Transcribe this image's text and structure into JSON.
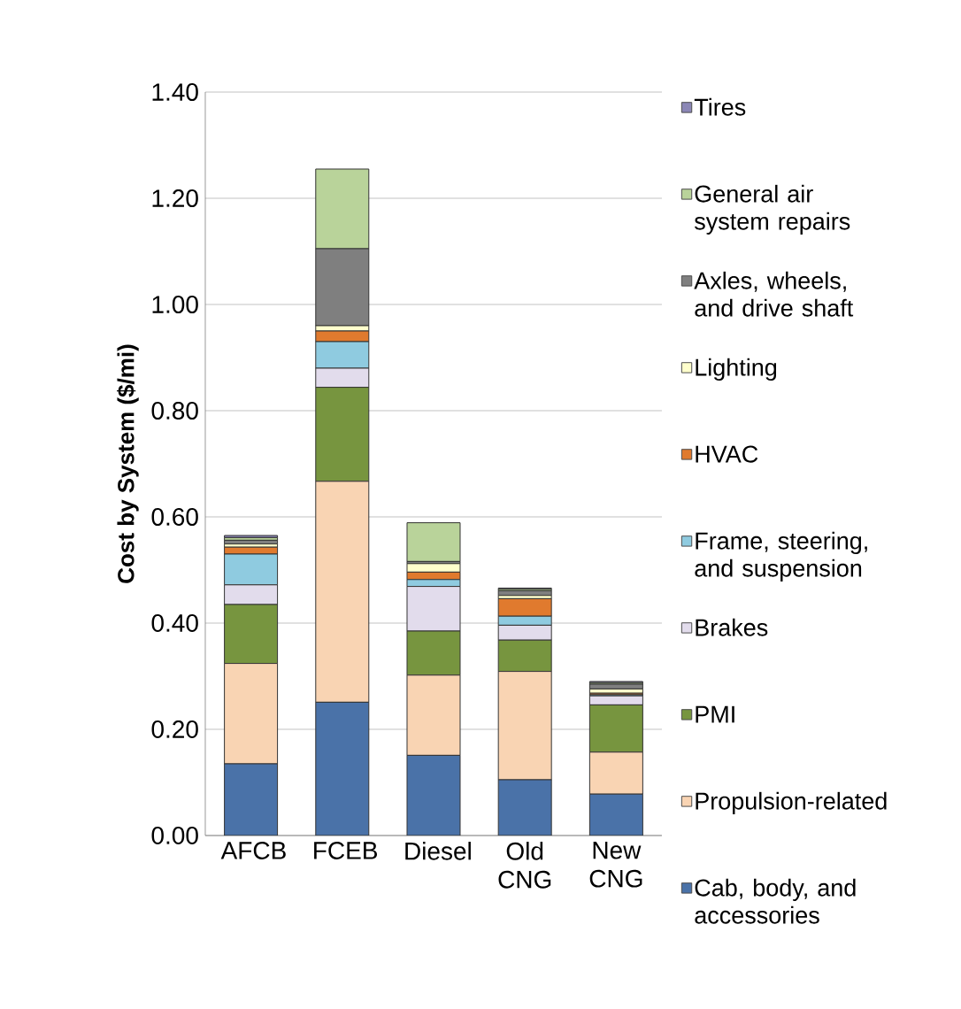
{
  "chart_data": {
    "type": "bar",
    "stacked": true,
    "ylabel": "Cost by System ($/mi)",
    "categories": [
      "AFCB",
      "FCEB",
      "Diesel",
      "Old CNG",
      "New CNG"
    ],
    "ylim": [
      0,
      1.4
    ],
    "yticks": [
      {
        "value": 0,
        "label": "0.00"
      },
      {
        "value": 0.2,
        "label": "0.20"
      },
      {
        "value": 0.4,
        "label": "0.40"
      },
      {
        "value": 0.6,
        "label": "0.60"
      },
      {
        "value": 0.8,
        "label": "0.80"
      },
      {
        "value": 1.0,
        "label": "1.00"
      },
      {
        "value": 1.2,
        "label": "1.20"
      },
      {
        "value": 1.4,
        "label": "1.40"
      }
    ],
    "grid": "y",
    "legend": "right",
    "series": [
      {
        "name": "Cab, body, and accessories",
        "color": "#4a72a8",
        "values": [
          0.135,
          0.251,
          0.151,
          0.105,
          0.078
        ]
      },
      {
        "name": "Propulsion-related",
        "color": "#f9d4b3",
        "values": [
          0.189,
          0.416,
          0.151,
          0.204,
          0.079
        ]
      },
      {
        "name": "PMI",
        "color": "#77953f",
        "values": [
          0.111,
          0.177,
          0.083,
          0.059,
          0.089
        ]
      },
      {
        "name": "Brakes",
        "color": "#e2dcec",
        "values": [
          0.037,
          0.036,
          0.084,
          0.028,
          0.017
        ]
      },
      {
        "name": "Frame, steering, and suspension",
        "color": "#8fcbe0",
        "values": [
          0.058,
          0.05,
          0.013,
          0.017,
          0.002
        ]
      },
      {
        "name": "HVAC",
        "color": "#e07a2e",
        "values": [
          0.013,
          0.02,
          0.014,
          0.033,
          0.003
        ]
      },
      {
        "name": "Lighting",
        "color": "#ffffcc",
        "values": [
          0.006,
          0.01,
          0.016,
          0.006,
          0.008
        ]
      },
      {
        "name": "Axles, wheels, and drive shaft",
        "color": "#7f7f7f",
        "values": [
          0.007,
          0.145,
          0.004,
          0.009,
          0.009
        ]
      },
      {
        "name": "General air system repairs",
        "color": "#b9d39a",
        "values": [
          0.005,
          0.15,
          0.073,
          0.003,
          0.003
        ]
      },
      {
        "name": "Tires",
        "color": "#8b87b6",
        "values": [
          0.004,
          0,
          0,
          0.002,
          0.002
        ]
      }
    ]
  }
}
